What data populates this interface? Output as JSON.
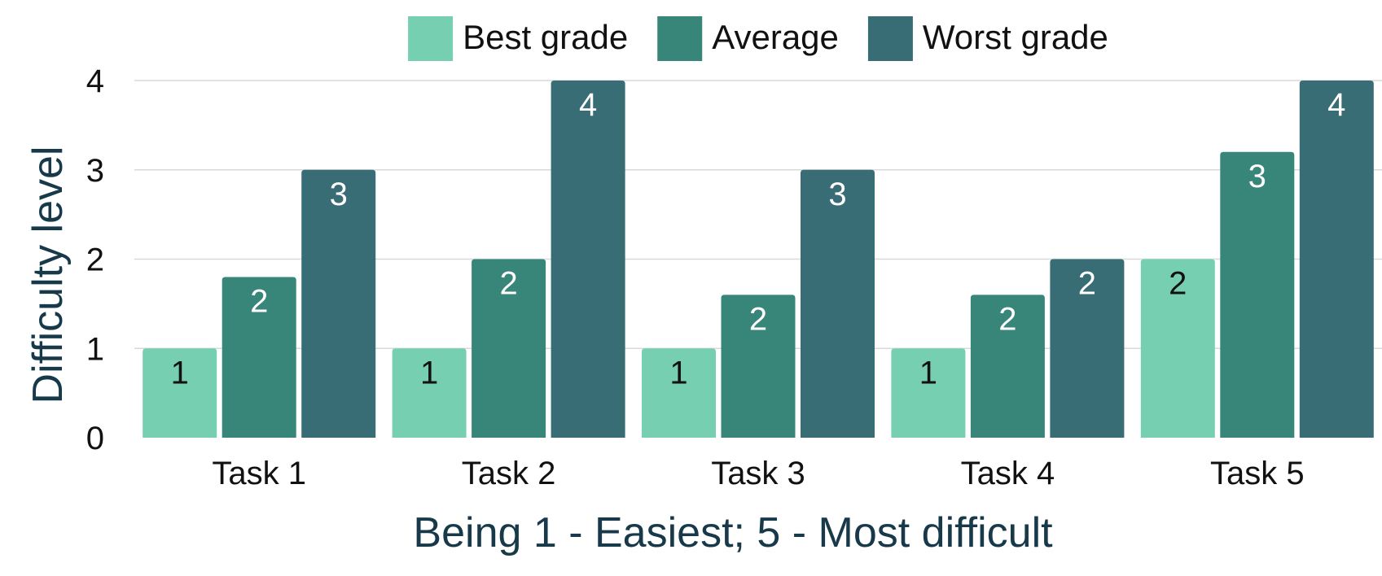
{
  "chart_data": {
    "type": "bar",
    "categories": [
      "Task 1",
      "Task 2",
      "Task 3",
      "Task 4",
      "Task 5"
    ],
    "series": [
      {
        "name": "Best grade",
        "values": [
          1,
          1,
          1,
          1,
          2
        ],
        "labels": [
          "1",
          "1",
          "1",
          "1",
          "2"
        ],
        "color": "#76cfb0",
        "label_color": "#111111"
      },
      {
        "name": "Average",
        "values": [
          1.8,
          2,
          1.6,
          1.6,
          3.2
        ],
        "labels": [
          "2",
          "2",
          "2",
          "2",
          "3"
        ],
        "color": "#38857a",
        "label_color": "#ffffff"
      },
      {
        "name": "Worst grade",
        "values": [
          3,
          4,
          3,
          2,
          4
        ],
        "labels": [
          "3",
          "4",
          "3",
          "2",
          "4"
        ],
        "color": "#386d76",
        "label_color": "#ffffff"
      }
    ],
    "xlabel": "Being 1 - Easiest; 5 - Most difficult",
    "ylabel": "Difficulty level",
    "ylim": [
      0,
      4
    ],
    "yticks": [
      "0",
      "1",
      "2",
      "3",
      "4"
    ],
    "grid": true,
    "legend_position": "top-center"
  }
}
